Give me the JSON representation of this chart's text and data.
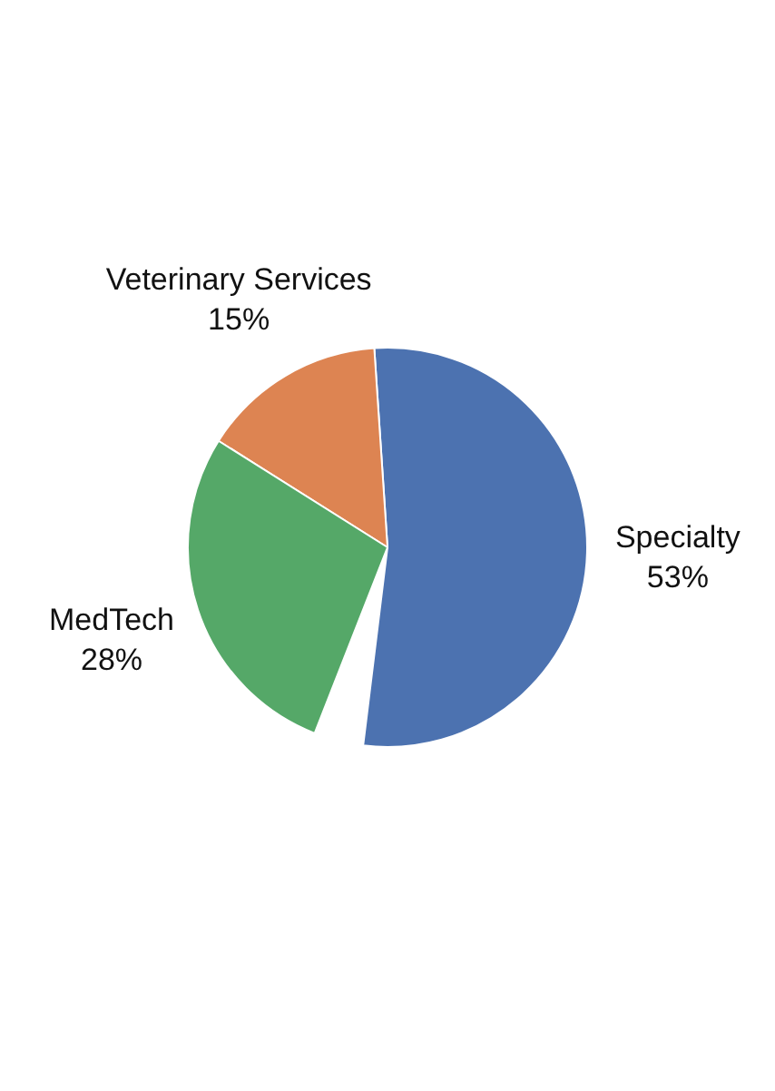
{
  "chart_data": {
    "type": "pie",
    "categories": [
      "Specialty",
      "Veterinary Services",
      "MedTech"
    ],
    "values": [
      53,
      15,
      28
    ],
    "colors": [
      "#4c72b0",
      "#dd8452",
      "#55a868"
    ],
    "value_labels": [
      "53%",
      "15%",
      "28%"
    ]
  }
}
